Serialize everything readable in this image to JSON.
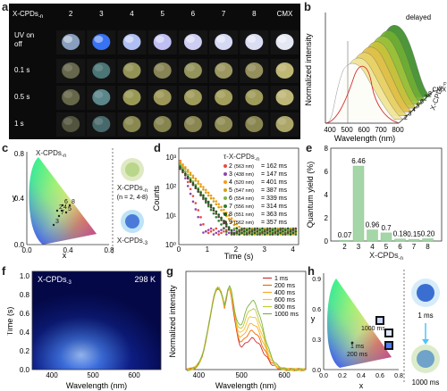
{
  "panel_labels": {
    "a": "a",
    "b": "b",
    "c": "c",
    "d": "d",
    "e": "e",
    "f": "f",
    "g": "g",
    "h": "h"
  },
  "panel_a": {
    "header": "X-CPDs",
    "header_sub": "-n",
    "columns": [
      "2",
      "3",
      "4",
      "5",
      "6",
      "7",
      "8",
      "CMX"
    ],
    "rows": [
      "UV on",
      "off",
      "0.1 s",
      "0.5 s",
      "1 s"
    ],
    "colors": {
      "uv": [
        "#8fa6c8",
        "#3a78ff",
        "#b8c8ff",
        "#c8c8ff",
        "#d8d8ff",
        "#e0e4ff",
        "#e6e8ff",
        "#f0f2ff"
      ],
      "s01": [
        "#6b6c50",
        "#4f7a7a",
        "#9a9a5a",
        "#8e8a58",
        "#9b9a60",
        "#a39e64",
        "#9c9660",
        "#c9c07a"
      ],
      "s05": [
        "#6a6a4c",
        "#5f8c90",
        "#a0a05a",
        "#a39e5c",
        "#a7a25e",
        "#aba660",
        "#a6a25e",
        "#c8c07c"
      ],
      "s1": [
        "#56573f",
        "#4b6e70",
        "#8e8e52",
        "#8c8a52",
        "#8f8c54",
        "#969258",
        "#8f8c54",
        "#b4ae6e"
      ]
    }
  },
  "panel_b": {
    "ylabel": "Normalized intensity",
    "xlabel": "Wavelength (nm)",
    "xticks": [
      "400",
      "500",
      "600",
      "700",
      "800"
    ],
    "annotation": "delayed",
    "zlabel": "X-CPDs",
    "zlabel_sub": "-n",
    "series": [
      "2",
      "3",
      "4",
      "5",
      "6",
      "7",
      "8",
      "CMX"
    ]
  },
  "panel_c": {
    "xlabel": "x",
    "ylabel": "y",
    "xticks": [
      "0.0",
      "0.4",
      "0.8"
    ],
    "yticks": [
      "0.0",
      "0.4",
      "0.8"
    ],
    "series_top": "X-CPDs",
    "series_top_sub": "-n",
    "points": [
      "6",
      "8",
      "2",
      "4",
      "5",
      "7",
      "3"
    ],
    "legend1": "X-CPDs",
    "legend1_sub": "-n",
    "legend1_note": "(n = 2, 4-8)",
    "legend2": "X-CPDs",
    "legend2_sub": "-3"
  },
  "panel_d": {
    "ylabel": "Counts",
    "xlabel": "Time (s)",
    "title": "τ-X-CPDs",
    "title_sub": "-n",
    "xticks": [
      "0",
      "1",
      "2",
      "3",
      "4"
    ],
    "yticks": [
      "10⁰",
      "10¹",
      "10²",
      "10³"
    ],
    "legend": [
      {
        "n": "2",
        "nm": "(563 nm)",
        "tau": "= 162 ms",
        "color": "#e74c3c"
      },
      {
        "n": "3",
        "nm": "(438 nm)",
        "tau": "= 147 ms",
        "color": "#8e44ad"
      },
      {
        "n": "4",
        "nm": "(520 nm)",
        "tau": "= 401 ms",
        "color": "#f39c12"
      },
      {
        "n": "5",
        "nm": "(547 nm)",
        "tau": "= 387 ms",
        "color": "#d4a017"
      },
      {
        "n": "6",
        "nm": "(554 nm)",
        "tau": "= 339 ms",
        "color": "#7cb342"
      },
      {
        "n": "7",
        "nm": "(556 nm)",
        "tau": "= 314 ms",
        "color": "#2e7d32"
      },
      {
        "n": "8",
        "nm": "(551 nm)",
        "tau": "= 363 ms",
        "color": "#1b5e20"
      },
      {
        "n": "9",
        "nm": "(562 nm)",
        "tau": "= 357 ms",
        "color": "#5d4037"
      }
    ]
  },
  "chart_data": [
    {
      "type": "bar",
      "panel": "e",
      "categories": [
        "2",
        "3",
        "4",
        "5",
        "6",
        "7",
        "8"
      ],
      "values": [
        0.07,
        6.46,
        0.96,
        0.7,
        0.18,
        0.15,
        0.2
      ],
      "value_labels": [
        "0.07",
        "6.46",
        "0.96",
        "0.7",
        "0.18",
        "0.15",
        "0.20"
      ],
      "xlabel": "X-CPDs",
      "xlabel_sub": "-n",
      "ylabel": "Quantum yield (%)",
      "ylim": [
        0,
        8
      ],
      "yticks": [
        "0",
        "2",
        "4",
        "6",
        "8"
      ],
      "bar_color": "#a5d6a7"
    }
  ],
  "panel_f": {
    "title": "X-CPDs",
    "title_sub": "-3",
    "temp": "298 K",
    "ylabel": "Time (s)",
    "xlabel": "Wavelength (nm)",
    "xticks": [
      "400",
      "500",
      "600"
    ],
    "yticks": [
      "0.0",
      "0.2",
      "0.4",
      "0.6",
      "0.8",
      "1.0"
    ]
  },
  "panel_g": {
    "ylabel": "Normalized intensity",
    "xlabel": "Wavelength (nm)",
    "xticks": [
      "400",
      "500",
      "600"
    ],
    "legend": [
      {
        "label": "1 ms",
        "color": "#d32f2f"
      },
      {
        "label": "200 ms",
        "color": "#ef6c00"
      },
      {
        "label": "400 ms",
        "color": "#f9a825"
      },
      {
        "label": "600 ms",
        "color": "#fbc02d"
      },
      {
        "label": "800 ms",
        "color": "#c0ca33"
      },
      {
        "label": "1000 ms",
        "color": "#7cb342"
      }
    ]
  },
  "panel_h": {
    "xlabel": "x",
    "ylabel": "y",
    "xticks": [
      "0.0",
      "0.2",
      "0.4",
      "0.6",
      "0.8"
    ],
    "yticks": [
      "0.0",
      "0.3",
      "0.6",
      "0.9"
    ],
    "labels": [
      "1000 ms",
      "1 ms",
      "200 ms"
    ],
    "legend_top": "1 ms",
    "legend_bottom": "1000 ms"
  }
}
